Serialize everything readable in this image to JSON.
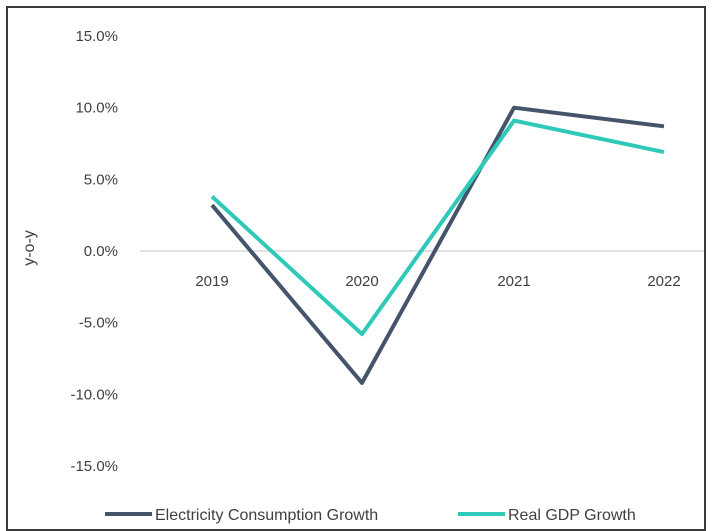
{
  "chart_data": {
    "type": "line",
    "title": "",
    "xlabel": "",
    "ylabel": "y-o-y",
    "categories": [
      "2019",
      "2020",
      "2021",
      "2022"
    ],
    "ylim": [
      -15,
      15
    ],
    "yticks": [
      15,
      10,
      5,
      0,
      -5,
      -10,
      -15
    ],
    "ytick_labels": [
      "15.0%",
      "10.0%",
      "5.0%",
      "0.0%",
      "-5.0%",
      "-10.0%",
      "-15.0%"
    ],
    "grid": false,
    "legend_position": "bottom",
    "series": [
      {
        "name": "Electricity Consumption Growth",
        "values": [
          3.2,
          -9.2,
          10.0,
          8.7
        ],
        "color": "#44546a"
      },
      {
        "name": "Real GDP Growth",
        "values": [
          3.8,
          -5.8,
          9.1,
          6.9
        ],
        "color": "#2ec9b8"
      }
    ]
  }
}
